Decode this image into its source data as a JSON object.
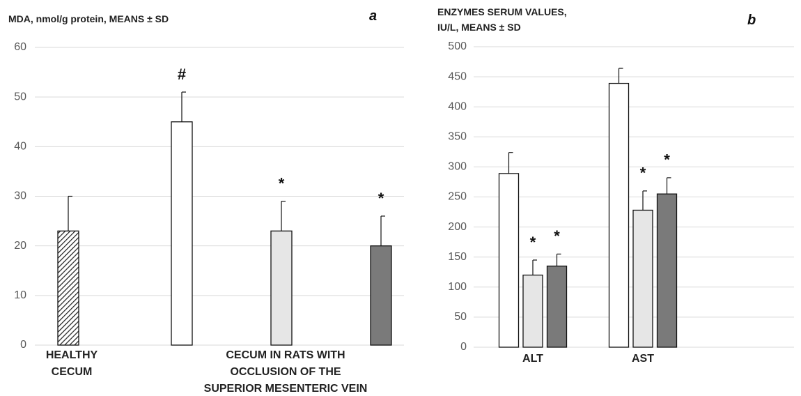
{
  "chart_data": [
    {
      "type": "bar",
      "title": "MDA, nmol/g protein, MEANS ± SD",
      "panel": "a",
      "ylim": [
        0,
        60
      ],
      "yticks": [
        0,
        10,
        20,
        30,
        40,
        50,
        60
      ],
      "grid": true,
      "groups": [
        {
          "label": [
            "HEALTHY",
            "CECUM"
          ],
          "bars": [
            {
              "value": 23,
              "error": 7,
              "color": "#ffffff",
              "hatch": true,
              "annotation": null
            }
          ]
        },
        {
          "label": [
            "CECUM IN RATS WITH",
            "OCCLUSION OF THE",
            "SUPERIOR MESENTERIC VEIN"
          ],
          "bars": [
            {
              "value": 45,
              "error": 6,
              "color": "#ffffff",
              "hatch": false,
              "annotation": "#"
            },
            {
              "value": 23,
              "error": 6,
              "color": "#e6e6e6",
              "hatch": false,
              "annotation": "*"
            },
            {
              "value": 20,
              "error": 6,
              "color": "#7a7a7a",
              "hatch": false,
              "annotation": "*"
            }
          ]
        }
      ]
    },
    {
      "type": "bar",
      "title": [
        "ENZYMES SERUM VALUES,",
        "IU/L, MEANS ± SD"
      ],
      "panel": "b",
      "ylim": [
        0,
        500
      ],
      "yticks": [
        0,
        50,
        100,
        150,
        200,
        250,
        300,
        350,
        400,
        450,
        500
      ],
      "grid": true,
      "categories": [
        "ALT",
        "AST"
      ],
      "series": [
        {
          "color": "#ffffff",
          "values": [
            289,
            439
          ],
          "errors": [
            35,
            25
          ],
          "annotations": [
            null,
            null
          ]
        },
        {
          "color": "#e6e6e6",
          "values": [
            120,
            228
          ],
          "errors": [
            25,
            32
          ],
          "annotations": [
            "*",
            "*"
          ]
        },
        {
          "color": "#7a7a7a",
          "values": [
            135,
            255
          ],
          "errors": [
            20,
            27
          ],
          "annotations": [
            "*",
            "*"
          ]
        }
      ]
    }
  ]
}
